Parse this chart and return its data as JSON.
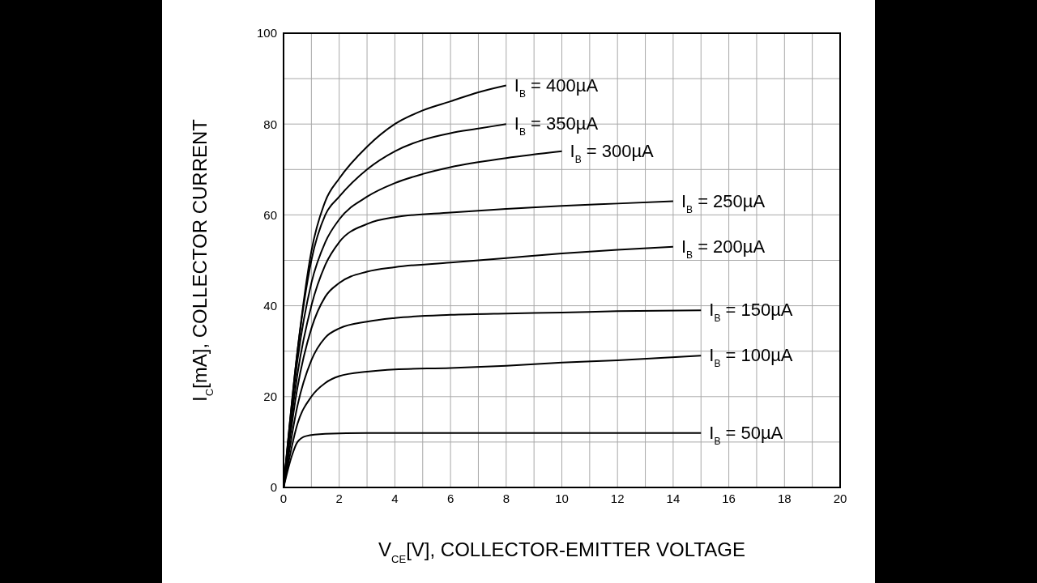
{
  "chart_data": {
    "type": "line",
    "xlabel": "V$_{CE}$[V], COLLECTOR-EMITTER VOLTAGE",
    "ylabel": "I$_{C}$[mA], COLLECTOR CURRENT",
    "xlim": [
      0,
      20
    ],
    "ylim": [
      0,
      100
    ],
    "xticks": [
      0,
      {
        "value": 1,
        "label": null
      },
      2,
      {
        "value": 3,
        "label": null
      },
      4,
      {
        "value": 5,
        "label": null
      },
      6,
      {
        "value": 7,
        "label": null
      },
      8,
      {
        "value": 9,
        "label": null
      },
      10,
      {
        "value": 11,
        "label": null
      },
      12,
      {
        "value": 13,
        "label": null
      },
      14,
      {
        "value": 15,
        "label": null
      },
      16,
      {
        "value": 17,
        "label": null
      },
      18,
      {
        "value": 19,
        "label": null
      },
      20
    ],
    "yticks": [
      0,
      {
        "value": 10,
        "label": null
      },
      20,
      {
        "value": 30,
        "label": null
      },
      40,
      {
        "value": 50,
        "label": null
      },
      60,
      {
        "value": 70,
        "label": null
      },
      80,
      {
        "value": 90,
        "label": null
      },
      100
    ],
    "grid": true,
    "legend": false,
    "marker": "none",
    "line_style": "solid",
    "series": [
      {
        "name": "I$_{B}$ = 400µA",
        "color": "#000000",
        "x": [
          0,
          0.5,
          1,
          1.5,
          2,
          3,
          4,
          5,
          6,
          7,
          8
        ],
        "values": [
          0,
          30,
          52,
          63,
          68,
          75,
          80,
          83,
          85,
          87,
          88.5
        ]
      },
      {
        "name": "I$_{B}$ = 350µA",
        "color": "#000000",
        "x": [
          0,
          0.5,
          1,
          1.5,
          2,
          3,
          4,
          5,
          6,
          7,
          8
        ],
        "values": [
          0,
          30,
          50,
          60,
          64,
          70,
          74,
          76.5,
          78,
          79,
          80
        ]
      },
      {
        "name": "I$_{B}$ = 300µA",
        "color": "#000000",
        "x": [
          0,
          0.5,
          1,
          1.5,
          2,
          3,
          4,
          5,
          6,
          8,
          10
        ],
        "values": [
          0,
          28,
          45,
          54,
          59,
          64,
          67,
          69,
          70.5,
          72.5,
          74
        ]
      },
      {
        "name": "I$_{B}$ = 250µA",
        "color": "#000000",
        "x": [
          0,
          0.5,
          1,
          1.5,
          2,
          3,
          4,
          6,
          8,
          10,
          12,
          14
        ],
        "values": [
          0,
          25,
          40,
          49,
          54,
          58,
          59.5,
          60.5,
          61.3,
          62,
          62.5,
          63
        ]
      },
      {
        "name": "I$_{B}$ = 200µA",
        "color": "#000000",
        "x": [
          0,
          0.5,
          1,
          1.5,
          2,
          3,
          4,
          6,
          8,
          10,
          12,
          14
        ],
        "values": [
          0,
          22,
          35,
          42,
          45,
          47.5,
          48.5,
          49.5,
          50.5,
          51.5,
          52.3,
          53
        ]
      },
      {
        "name": "I$_{B}$ = 150µA",
        "color": "#000000",
        "x": [
          0,
          0.5,
          1,
          1.5,
          2,
          3,
          4,
          6,
          8,
          10,
          12,
          15
        ],
        "values": [
          0,
          18,
          28,
          33,
          35,
          36.5,
          37.3,
          38,
          38.3,
          38.5,
          38.8,
          39
        ]
      },
      {
        "name": "I$_{B}$ = 100µA",
        "color": "#000000",
        "x": [
          0,
          0.5,
          1,
          1.5,
          2,
          3,
          4,
          6,
          8,
          10,
          12,
          15
        ],
        "values": [
          0,
          14,
          20,
          23,
          24.5,
          25.5,
          26,
          26.3,
          26.8,
          27.5,
          28,
          29
        ]
      },
      {
        "name": "I$_{B}$ = 50µA",
        "color": "#000000",
        "x": [
          0,
          0.3,
          0.5,
          0.8,
          1.5,
          3,
          8,
          15
        ],
        "values": [
          0,
          7,
          10,
          11.3,
          11.8,
          12,
          12,
          12
        ]
      }
    ]
  }
}
